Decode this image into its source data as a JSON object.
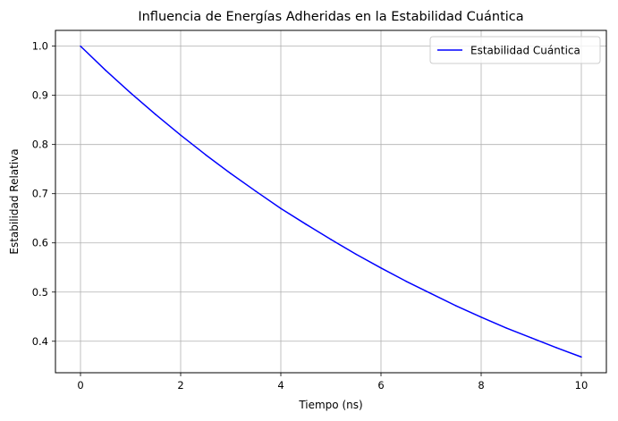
{
  "chart_data": {
    "type": "line",
    "title": "Influencia de Energías Adheridas en la Estabilidad Cuántica",
    "xlabel": "Tiempo (ns)",
    "ylabel": "Estabilidad Relativa",
    "xlim": [
      -0.5,
      10.5
    ],
    "ylim": [
      0.336,
      1.032
    ],
    "xticks": [
      0,
      2,
      4,
      6,
      8,
      10
    ],
    "xtick_labels": [
      "0",
      "2",
      "4",
      "6",
      "8",
      "10"
    ],
    "yticks": [
      0.4,
      0.5,
      0.6,
      0.7,
      0.8,
      0.9,
      1.0
    ],
    "ytick_labels": [
      "0.4",
      "0.5",
      "0.6",
      "0.7",
      "0.8",
      "0.9",
      "1.0"
    ],
    "grid": true,
    "legend_position": "top-right",
    "series": [
      {
        "name": "Estabilidad Cuántica",
        "color": "#0000ff",
        "x": [
          0,
          0.5,
          1,
          1.5,
          2,
          2.5,
          3,
          3.5,
          4,
          4.5,
          5,
          5.5,
          6,
          6.5,
          7,
          7.5,
          8,
          8.5,
          9,
          9.5,
          10
        ],
        "y": [
          1.0,
          0.951,
          0.905,
          0.861,
          0.819,
          0.779,
          0.741,
          0.705,
          0.67,
          0.638,
          0.607,
          0.577,
          0.549,
          0.522,
          0.497,
          0.472,
          0.449,
          0.427,
          0.407,
          0.387,
          0.368
        ]
      }
    ]
  }
}
